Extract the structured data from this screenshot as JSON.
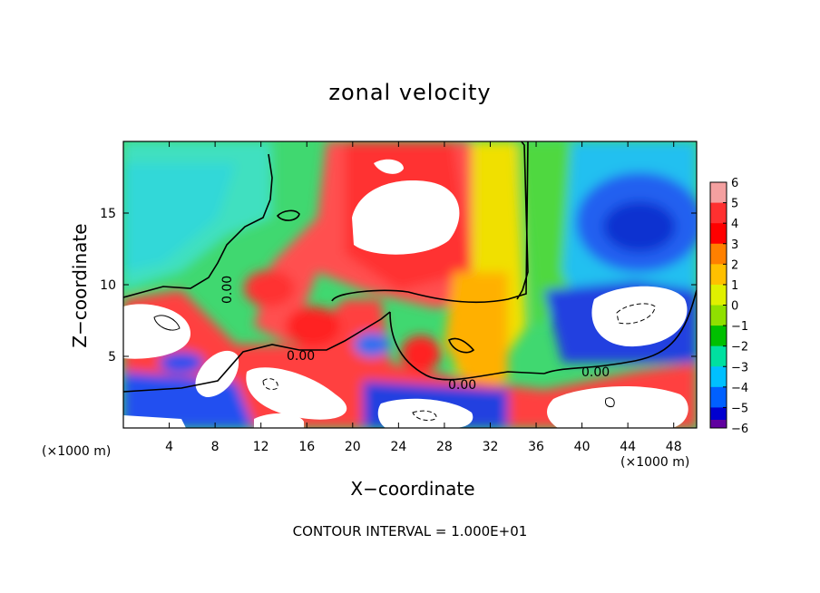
{
  "chart_data": {
    "type": "heatmap",
    "title": "zonal velocity",
    "xlabel": "X−coordinate",
    "ylabel": "Z−coordinate",
    "x_unit": "(×1000 m)",
    "footnote": "CONTOUR INTERVAL = 1.000E+01",
    "xlim": [
      0,
      50
    ],
    "ylim": [
      0,
      20
    ],
    "x_ticks": [
      4,
      8,
      12,
      16,
      20,
      24,
      28,
      32,
      36,
      40,
      44,
      48
    ],
    "y_ticks": [
      5,
      10,
      15
    ],
    "colorbar": {
      "ticks": [
        6,
        5,
        4,
        3,
        2,
        1,
        0,
        -1,
        -2,
        -3,
        -4,
        -5,
        -6
      ],
      "colors": [
        "#f4a0a0",
        "#ff3030",
        "#ff0000",
        "#ff8000",
        "#ffc000",
        "#e0f000",
        "#90e000",
        "#00c000",
        "#00e0a0",
        "#00c0ff",
        "#0060ff",
        "#0000d0",
        "#6000a0"
      ]
    },
    "contour_labels": [
      "0.00",
      "0.00",
      "0.00",
      "0.00"
    ]
  }
}
